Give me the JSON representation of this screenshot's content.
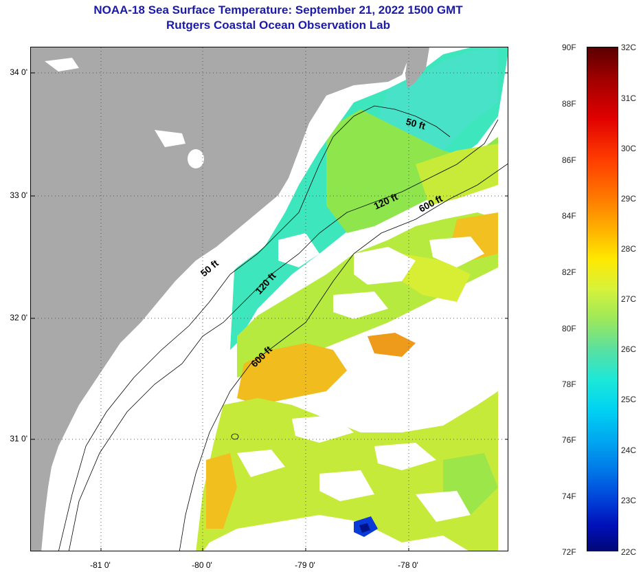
{
  "title": {
    "line1": "NOAA-18 Sea Surface Temperature:  September 21, 2022 1500 GMT",
    "line2": "Rutgers Coastal Ocean Observation Lab"
  },
  "map": {
    "lat_labels": [
      "34 0'",
      "33 0'",
      "32 0'",
      "31 0'"
    ],
    "lon_labels": [
      "-81 0'",
      "-80 0'",
      "-79 0'",
      "-78 0'"
    ],
    "contour_labels": [
      "50 ft",
      "120 ft",
      "600 ft",
      "50 ft",
      "120 ft",
      "600 ft"
    ],
    "colors": {
      "land": "#a9a9a9",
      "cloud": "#ffffff",
      "ocean_near_shore": "#3de6bc",
      "ocean_mid": "#b8ec3e",
      "ocean_warm": "#f2c01e"
    }
  },
  "colorbar": {
    "fahrenheit": [
      "90F",
      "88F",
      "86F",
      "84F",
      "82F",
      "80F",
      "78F",
      "76F",
      "74F",
      "72F"
    ],
    "celsius": [
      "32C",
      "31C",
      "30C",
      "29C",
      "28C",
      "27C",
      "26C",
      "25C",
      "24C",
      "23C",
      "22C"
    ]
  }
}
